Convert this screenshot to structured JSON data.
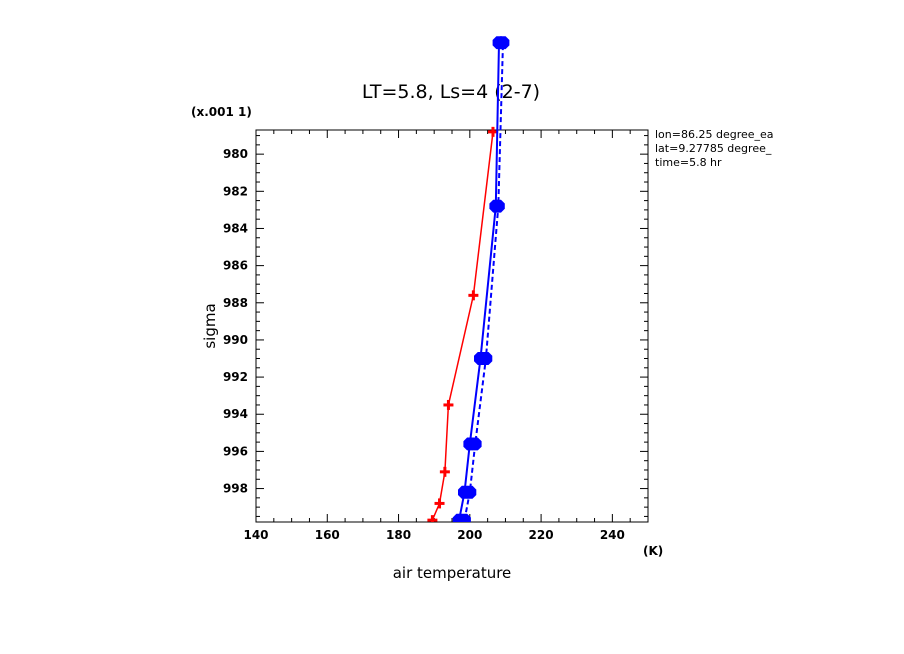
{
  "chart_data": {
    "type": "line",
    "title": "LT=5.8, Ls=4 (2-7)",
    "xlabel": "air temperature",
    "ylabel": "sigma",
    "x_unit": "(K)",
    "y_scale_note": "(x.001 1)",
    "xlim": [
      140,
      250
    ],
    "ylim": [
      999.8,
      978.7
    ],
    "x_ticks": [
      140,
      160,
      180,
      200,
      220,
      240
    ],
    "y_ticks": [
      980,
      982,
      984,
      986,
      988,
      990,
      992,
      994,
      996,
      998
    ],
    "annotations": [
      "lon=86.25 degree_ea",
      "lat=9.27785 degree_",
      "time=5.8 hr"
    ],
    "grid": false,
    "series": [
      {
        "color": "#ff0000",
        "line": "solid",
        "marker": "plus",
        "points": [
          {
            "x": 189.5,
            "y": 999.7
          },
          {
            "x": 191.5,
            "y": 998.8
          },
          {
            "x": 193.0,
            "y": 997.1
          },
          {
            "x": 194.0,
            "y": 993.5
          },
          {
            "x": 201.0,
            "y": 987.6
          },
          {
            "x": 206.5,
            "y": 978.8
          }
        ]
      },
      {
        "color": "#0000ff",
        "line": "solid",
        "marker": "octagon",
        "points": [
          {
            "x": 197.0,
            "y": 999.7
          },
          {
            "x": 198.5,
            "y": 998.2
          },
          {
            "x": 200.0,
            "y": 995.6
          },
          {
            "x": 203.0,
            "y": 991.0
          },
          {
            "x": 207.3,
            "y": 982.8
          },
          {
            "x": 208.2,
            "y": 974.0
          }
        ]
      },
      {
        "color": "#0000ff",
        "line": "dashed",
        "marker": "octagon",
        "points": [
          {
            "x": 198.5,
            "y": 999.7
          },
          {
            "x": 200.0,
            "y": 998.2
          },
          {
            "x": 201.5,
            "y": 995.6
          },
          {
            "x": 204.5,
            "y": 991.0
          },
          {
            "x": 208.0,
            "y": 982.8
          },
          {
            "x": 209.3,
            "y": 974.0
          }
        ]
      }
    ]
  }
}
